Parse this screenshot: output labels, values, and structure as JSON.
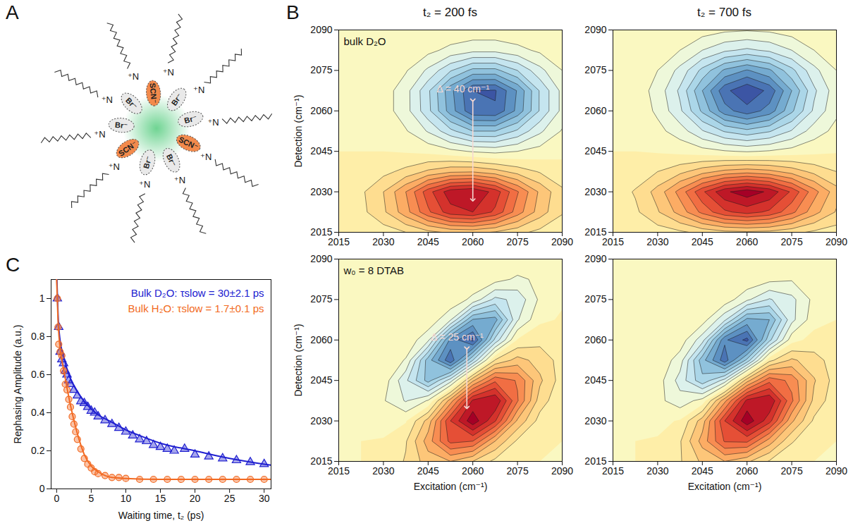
{
  "diagram": {
    "panel": "A",
    "type": "diagram",
    "surfactant_head": "⁺N",
    "surfactant_count": 10,
    "ions": [
      {
        "label": "SCN⁻",
        "color": "#f28a4c"
      },
      {
        "label": "Br⁻",
        "color": "#e9e9e9"
      },
      {
        "label": "Br⁻",
        "color": "#e9e9e9"
      },
      {
        "label": "SCN⁻",
        "color": "#f28a4c"
      },
      {
        "label": "Br⁻",
        "color": "#e9e9e9"
      },
      {
        "label": "Br⁻",
        "color": "#e9e9e9"
      },
      {
        "label": "SCN⁻",
        "color": "#f28a4c"
      },
      {
        "label": "Br⁻",
        "color": "#e9e9e9"
      },
      {
        "label": "Br⁻",
        "color": "#e9e9e9"
      }
    ]
  },
  "chart_data": [
    {
      "panel": "B",
      "type": "contour",
      "column_titles": [
        "t₂ = 200 fs",
        "t₂ = 700 fs"
      ],
      "xlabel": "Excitation (cm⁻¹)",
      "ylabel": "Detection (cm⁻¹)",
      "xlim": [
        2015,
        2090
      ],
      "ylim": [
        2015,
        2090
      ],
      "xticks": [
        2015,
        2030,
        2045,
        2060,
        2075,
        2090
      ],
      "yticks": [
        2015,
        2030,
        2045,
        2060,
        2075,
        2090
      ],
      "x": [
        2015,
        2022.5,
        2030,
        2037.5,
        2045,
        2052.5,
        2060,
        2067.5,
        2075,
        2082.5,
        2090
      ],
      "y": [
        2015,
        2022.5,
        2030,
        2037.5,
        2045,
        2052.5,
        2060,
        2067.5,
        2075,
        2082.5,
        2090
      ],
      "zlim": [
        -1,
        1
      ],
      "color": "RdYlBu",
      "panels": [
        {
          "label": "bulk D₂O",
          "annotation": {
            "text": "Δ = 40 cm⁻¹",
            "x": 2060,
            "y1": 2064,
            "y2": 2027
          },
          "z": [
            [
              -0.01,
              -0.02,
              -0.05,
              -0.1,
              -0.17,
              -0.22,
              -0.23,
              -0.19,
              -0.13,
              -0.07,
              -0.03
            ],
            [
              -0.02,
              -0.07,
              -0.18,
              -0.36,
              -0.58,
              -0.76,
              -0.8,
              -0.68,
              -0.45,
              -0.25,
              -0.11
            ],
            [
              -0.03,
              -0.08,
              -0.2,
              -0.4,
              -0.66,
              -0.86,
              -0.9,
              -0.76,
              -0.51,
              -0.28,
              -0.12
            ],
            [
              -0.01,
              -0.03,
              -0.07,
              -0.13,
              -0.22,
              -0.28,
              -0.29,
              -0.24,
              -0.16,
              -0.09,
              -0.03
            ],
            [
              0,
              0,
              0,
              0.01,
              0.03,
              0.07,
              0.11,
              0.13,
              0.1,
              0.06,
              0.02
            ],
            [
              0,
              0.01,
              0.03,
              0.09,
              0.21,
              0.37,
              0.5,
              0.5,
              0.38,
              0.22,
              0.09
            ],
            [
              0,
              0.01,
              0.05,
              0.16,
              0.37,
              0.65,
              0.88,
              0.89,
              0.67,
              0.39,
              0.17
            ],
            [
              0,
              0.01,
              0.05,
              0.16,
              0.38,
              0.67,
              0.9,
              0.91,
              0.69,
              0.39,
              0.17
            ],
            [
              0,
              0.01,
              0.03,
              0.09,
              0.22,
              0.39,
              0.53,
              0.53,
              0.4,
              0.23,
              0.1
            ],
            [
              0,
              0,
              0.01,
              0.03,
              0.07,
              0.13,
              0.17,
              0.17,
              0.13,
              0.08,
              0.03
            ],
            [
              0,
              0,
              0,
              0.01,
              0.01,
              0.02,
              0.03,
              0.03,
              0.02,
              0.01,
              0.01
            ]
          ]
        },
        {
          "z": [
            [
              -0.01,
              -0.02,
              -0.05,
              -0.08,
              -0.13,
              -0.17,
              -0.18,
              -0.17,
              -0.13,
              -0.08,
              -0.05
            ],
            [
              -0.03,
              -0.08,
              -0.19,
              -0.34,
              -0.53,
              -0.68,
              -0.74,
              -0.68,
              -0.53,
              -0.34,
              -0.19
            ],
            [
              -0.04,
              -0.11,
              -0.24,
              -0.44,
              -0.68,
              -0.88,
              -0.96,
              -0.88,
              -0.68,
              -0.44,
              -0.24
            ],
            [
              -0.02,
              -0.04,
              -0.1,
              -0.17,
              -0.26,
              -0.33,
              -0.36,
              -0.33,
              -0.26,
              -0.17,
              -0.1
            ],
            [
              0,
              0,
              0.01,
              0.03,
              0.06,
              0.09,
              0.11,
              0.09,
              0.06,
              0.03,
              0.01
            ],
            [
              0,
              0.02,
              0.07,
              0.15,
              0.29,
              0.41,
              0.47,
              0.41,
              0.29,
              0.15,
              0.07
            ],
            [
              0.01,
              0.03,
              0.12,
              0.28,
              0.52,
              0.76,
              0.86,
              0.76,
              0.52,
              0.28,
              0.12
            ],
            [
              0.01,
              0.04,
              0.14,
              0.32,
              0.6,
              0.87,
              0.99,
              0.87,
              0.6,
              0.32,
              0.14
            ],
            [
              0.01,
              0.03,
              0.1,
              0.23,
              0.43,
              0.62,
              0.71,
              0.62,
              0.43,
              0.23,
              0.1
            ],
            [
              0,
              0.01,
              0.04,
              0.1,
              0.2,
              0.28,
              0.32,
              0.28,
              0.2,
              0.1,
              0.04
            ],
            [
              0,
              0,
              0.01,
              0.03,
              0.05,
              0.08,
              0.09,
              0.08,
              0.05,
              0.03,
              0.01
            ]
          ]
        },
        {
          "label": "w₀ = 8 DTAB",
          "annotation": {
            "text": "Δ = 25 cm⁻¹",
            "x": 2058,
            "y1": 2057,
            "y2": 2035
          },
          "z": [
            [
              0,
              0,
              -0.02,
              -0.11,
              -0.25,
              -0.3,
              -0.2,
              -0.07,
              -0.01,
              0,
              0
            ],
            [
              0,
              0,
              -0.01,
              -0.09,
              -0.35,
              -0.63,
              -0.6,
              -0.3,
              -0.08,
              -0.01,
              0
            ],
            [
              0,
              0.01,
              0.05,
              0.01,
              -0.24,
              -0.7,
              -0.97,
              -0.71,
              -0.28,
              -0.06,
              0
            ],
            [
              0,
              0.01,
              0.09,
              0.21,
              0.09,
              -0.35,
              -0.82,
              -0.89,
              -0.51,
              -0.15,
              -0.02
            ],
            [
              0,
              0,
              0.04,
              0.28,
              0.54,
              0.25,
              -0.28,
              -0.58,
              -0.49,
              -0.22,
              -0.05
            ],
            [
              0,
              0,
              0.01,
              0.11,
              0.55,
              0.88,
              0.4,
              -0.11,
              -0.24,
              -0.16,
              -0.06
            ],
            [
              0,
              0,
              0,
              0.02,
              0.18,
              0.73,
              0.93,
              0.37,
              -0.01,
              -0.07,
              -0.03
            ],
            [
              0,
              0,
              0,
              0,
              0.02,
              0.19,
              0.61,
              0.64,
              0.21,
              0.02,
              -0.01
            ],
            [
              0,
              0,
              0,
              0,
              0,
              0.02,
              0.13,
              0.33,
              0.27,
              0.08,
              0.01
            ],
            [
              0,
              0,
              0,
              0,
              0,
              0,
              0.01,
              0.06,
              0.12,
              0.08,
              0.01
            ],
            [
              0,
              0,
              0,
              0,
              0,
              0,
              0,
              0,
              0.02,
              0.02,
              0.01
            ]
          ]
        },
        {
          "z": [
            [
              0,
              0,
              -0.02,
              -0.09,
              -0.22,
              -0.3,
              -0.22,
              -0.09,
              -0.02,
              0,
              0
            ],
            [
              0,
              0,
              -0.01,
              -0.09,
              -0.34,
              -0.61,
              -0.62,
              -0.35,
              -0.11,
              -0.02,
              0
            ],
            [
              0,
              0.01,
              0.03,
              -0.01,
              -0.25,
              -0.7,
              -0.97,
              -0.74,
              -0.32,
              -0.08,
              -0.01
            ],
            [
              0,
              0.01,
              0.07,
              0.16,
              0.06,
              -0.37,
              -0.83,
              -0.89,
              -0.52,
              -0.17,
              -0.03
            ],
            [
              0,
              0,
              0.05,
              0.24,
              0.47,
              0.26,
              -0.26,
              -0.57,
              -0.47,
              -0.21,
              -0.05
            ],
            [
              0,
              0,
              0.02,
              0.15,
              0.56,
              0.86,
              0.47,
              -0.07,
              -0.22,
              -0.14,
              -0.05
            ],
            [
              0,
              0,
              0,
              0.04,
              0.26,
              0.78,
              0.93,
              0.43,
              0.04,
              -0.04,
              -0.02
            ],
            [
              0,
              0,
              0,
              0,
              0.05,
              0.28,
              0.63,
              0.6,
              0.23,
              0.04,
              0
            ],
            [
              0,
              0,
              0,
              0,
              0,
              0.04,
              0.18,
              0.31,
              0.23,
              0.07,
              0.01
            ],
            [
              0,
              0,
              0,
              0,
              0,
              0,
              0.02,
              0.07,
              0.09,
              0.05,
              0.01
            ],
            [
              0,
              0,
              0,
              0,
              0,
              0,
              0,
              0.01,
              0.01,
              0.02,
              0.01
            ]
          ]
        }
      ]
    },
    {
      "panel": "C",
      "type": "scatter",
      "xlabel": "Waiting time, t₂ (ps)",
      "ylabel": "Rephasing Amplitude (a.u.)",
      "xlim": [
        -0.8,
        31
      ],
      "ylim": [
        0,
        1.1
      ],
      "xticks": [
        0,
        5,
        10,
        15,
        20,
        25,
        30
      ],
      "yticks": [
        0,
        0.2,
        0.4,
        0.6,
        0.8,
        1
      ],
      "legend": "top-right",
      "series": [
        {
          "name": "Bulk D₂O: τslow = 30±2.1 ps",
          "color": "#2020d0",
          "marker": "triangle",
          "x": [
            0.1,
            0.3,
            0.5,
            0.75,
            1,
            1.25,
            1.5,
            1.75,
            2,
            2.5,
            3,
            3.5,
            4,
            4.5,
            5,
            5.5,
            6,
            7,
            8,
            9,
            10,
            11,
            12,
            13,
            14,
            15,
            16,
            17,
            18.5,
            20,
            22,
            24,
            26,
            28,
            30
          ],
          "values": [
            1.0,
            0.85,
            0.72,
            0.68,
            0.66,
            0.62,
            0.6,
            0.57,
            0.55,
            0.52,
            0.49,
            0.46,
            0.45,
            0.43,
            0.41,
            0.4,
            0.38,
            0.36,
            0.34,
            0.32,
            0.3,
            0.28,
            0.26,
            0.25,
            0.23,
            0.22,
            0.21,
            0.2,
            0.21,
            0.18,
            0.17,
            0.16,
            0.15,
            0.14,
            0.13
          ],
          "fit": {
            "x": [
              0,
              0.25,
              0.5,
              1,
              1.5,
              2,
              3,
              4,
              5,
              6,
              8,
              10,
              12,
              15,
              20,
              25,
              30,
              31
            ],
            "values": [
              1.15,
              0.88,
              0.78,
              0.7,
              0.63,
              0.58,
              0.51,
              0.46,
              0.42,
              0.39,
              0.35,
              0.31,
              0.28,
              0.24,
              0.2,
              0.16,
              0.13,
              0.125
            ]
          }
        },
        {
          "name": "Bulk H₂O: τslow = 1.7±0.1 ps",
          "color": "#f26a22",
          "marker": "circle",
          "x": [
            0.1,
            0.2,
            0.3,
            0.5,
            0.75,
            1,
            1.25,
            1.5,
            1.75,
            2,
            2.25,
            2.5,
            2.75,
            3,
            3.5,
            4,
            4.5,
            5,
            5.5,
            6,
            7,
            8,
            9,
            10,
            12,
            14,
            16,
            18,
            20,
            22,
            24,
            26,
            28,
            30
          ],
          "values": [
            1.0,
            0.85,
            0.76,
            0.72,
            0.7,
            0.62,
            0.55,
            0.52,
            0.47,
            0.43,
            0.38,
            0.34,
            0.3,
            0.26,
            0.21,
            0.16,
            0.13,
            0.11,
            0.09,
            0.08,
            0.07,
            0.06,
            0.06,
            0.055,
            0.05,
            0.05,
            0.05,
            0.05,
            0.05,
            0.05,
            0.05,
            0.05,
            0.05,
            0.05
          ],
          "fit": {
            "x": [
              0,
              0.25,
              0.5,
              1,
              1.5,
              2,
              2.5,
              3,
              3.5,
              4,
              5,
              6,
              7,
              8,
              10,
              15,
              31
            ],
            "values": [
              1.1,
              0.85,
              0.74,
              0.63,
              0.53,
              0.44,
              0.36,
              0.29,
              0.23,
              0.18,
              0.12,
              0.09,
              0.07,
              0.06,
              0.055,
              0.05,
              0.05
            ]
          }
        }
      ]
    }
  ]
}
